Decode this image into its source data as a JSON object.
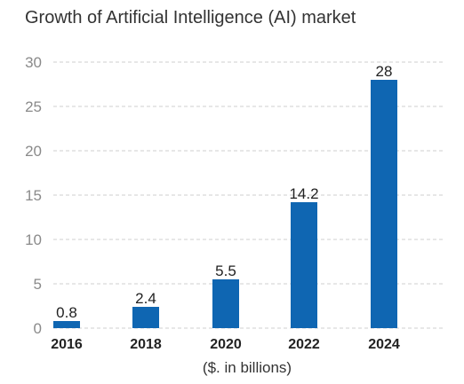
{
  "chart_data": {
    "type": "bar",
    "title": "Growth of Artificial Intelligence (AI) market",
    "categories": [
      "2016",
      "2018",
      "2020",
      "2022",
      "2024"
    ],
    "values": [
      0.8,
      2.4,
      5.5,
      14.2,
      28
    ],
    "data_labels": [
      "0.8",
      "2.4",
      "5.5",
      "14.2",
      "28"
    ],
    "xlabel": "($. in billions)",
    "ylabel": "",
    "ylim": [
      0,
      30
    ],
    "yticks": [
      0,
      5,
      10,
      15,
      20,
      25,
      30
    ],
    "ytick_labels": [
      "0",
      "5",
      "10",
      "15",
      "20",
      "25",
      "30"
    ],
    "grid": true,
    "legend": "none",
    "colors": {
      "bar": "#0f66b2",
      "grid": "#cfcfcf",
      "title": "#333333",
      "ytick": "#8a8a8a",
      "xtick": "#222222"
    }
  }
}
